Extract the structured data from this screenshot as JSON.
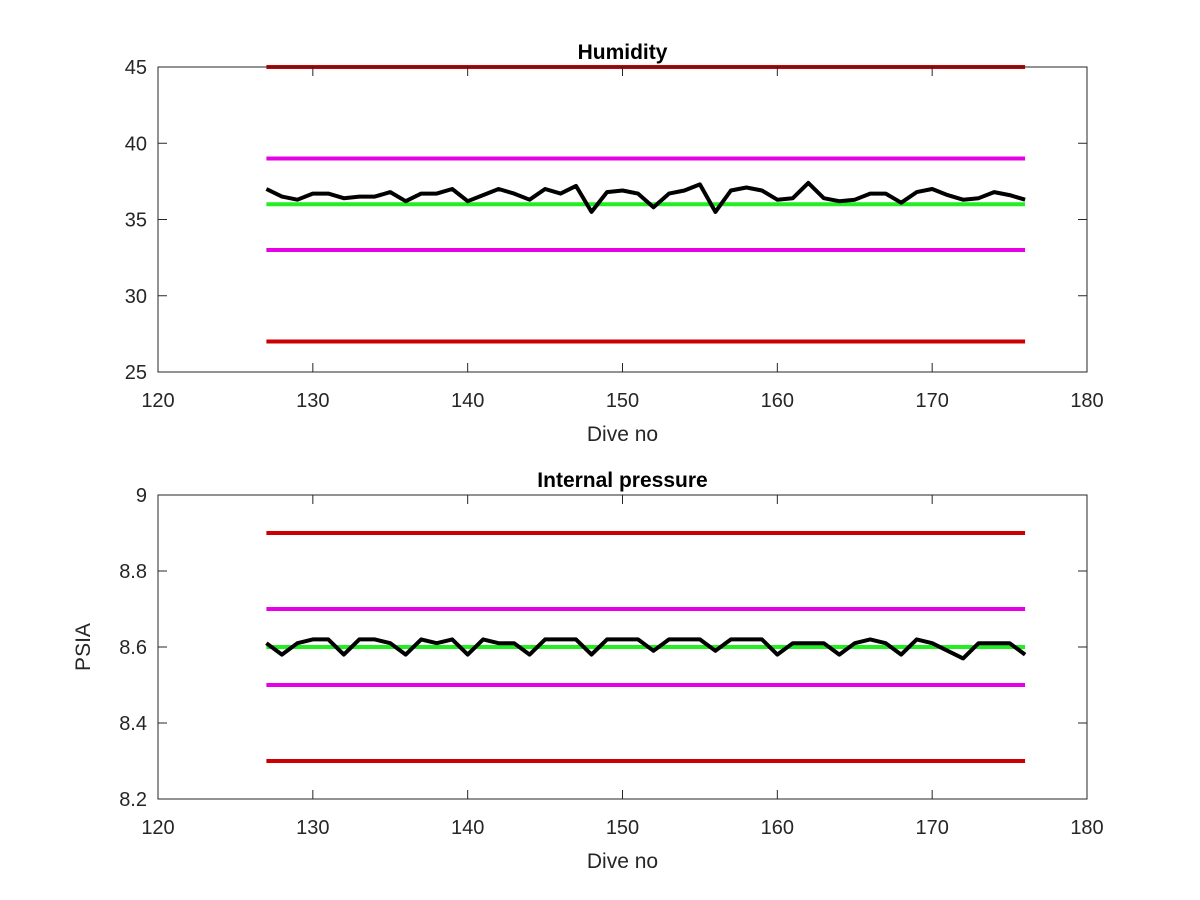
{
  "chart_data": [
    {
      "type": "line",
      "title": "Humidity",
      "xlabel": "Dive no",
      "ylabel": "",
      "xlim": [
        120,
        180
      ],
      "ylim": [
        25,
        45
      ],
      "xticks": [
        120,
        130,
        140,
        150,
        160,
        170,
        180
      ],
      "yticks": [
        25,
        30,
        35,
        40,
        45
      ],
      "grid": false,
      "series": [
        {
          "color": "#cc0000",
          "x": [
            127,
            176
          ],
          "values": [
            45,
            45
          ]
        },
        {
          "color": "#e600e6",
          "x": [
            127,
            176
          ],
          "values": [
            39,
            39
          ]
        },
        {
          "color": "#22ee22",
          "x": [
            127,
            176
          ],
          "values": [
            36,
            36
          ]
        },
        {
          "color": "#e600e6",
          "x": [
            127,
            176
          ],
          "values": [
            33,
            33
          ]
        },
        {
          "color": "#cc0000",
          "x": [
            127,
            176
          ],
          "values": [
            27,
            27
          ]
        },
        {
          "color": "#000000",
          "x": [
            127,
            128,
            129,
            130,
            131,
            132,
            133,
            134,
            135,
            136,
            137,
            138,
            139,
            140,
            141,
            142,
            143,
            144,
            145,
            146,
            147,
            148,
            149,
            150,
            151,
            152,
            153,
            154,
            155,
            156,
            157,
            158,
            159,
            160,
            161,
            162,
            163,
            164,
            165,
            166,
            167,
            168,
            169,
            170,
            171,
            172,
            173,
            174,
            175,
            176
          ],
          "values": [
            37.0,
            36.5,
            36.3,
            36.7,
            36.7,
            36.4,
            36.5,
            36.5,
            36.8,
            36.2,
            36.7,
            36.7,
            37.0,
            36.2,
            36.6,
            37.0,
            36.7,
            36.3,
            37.0,
            36.7,
            37.2,
            35.5,
            36.8,
            36.9,
            36.7,
            35.8,
            36.7,
            36.9,
            37.3,
            35.5,
            36.9,
            37.1,
            36.9,
            36.3,
            36.4,
            37.4,
            36.4,
            36.2,
            36.3,
            36.7,
            36.7,
            36.1,
            36.8,
            37.0,
            36.6,
            36.3,
            36.4,
            36.8,
            36.6,
            36.3
          ]
        }
      ]
    },
    {
      "type": "line",
      "title": "Internal pressure",
      "xlabel": "Dive no",
      "ylabel": "PSIA",
      "xlim": [
        120,
        180
      ],
      "ylim": [
        8.2,
        9
      ],
      "xticks": [
        120,
        130,
        140,
        150,
        160,
        170,
        180
      ],
      "yticks": [
        "8.2",
        "8.4",
        "8.6",
        "8.8",
        "9"
      ],
      "grid": false,
      "series": [
        {
          "color": "#cc0000",
          "x": [
            127,
            176
          ],
          "values": [
            8.9,
            8.9
          ]
        },
        {
          "color": "#e600e6",
          "x": [
            127,
            176
          ],
          "values": [
            8.7,
            8.7
          ]
        },
        {
          "color": "#22ee22",
          "x": [
            127,
            176
          ],
          "values": [
            8.6,
            8.6
          ]
        },
        {
          "color": "#e600e6",
          "x": [
            127,
            176
          ],
          "values": [
            8.5,
            8.5
          ]
        },
        {
          "color": "#cc0000",
          "x": [
            127,
            176
          ],
          "values": [
            8.3,
            8.3
          ]
        },
        {
          "color": "#000000",
          "x": [
            127,
            128,
            129,
            130,
            131,
            132,
            133,
            134,
            135,
            136,
            137,
            138,
            139,
            140,
            141,
            142,
            143,
            144,
            145,
            146,
            147,
            148,
            149,
            150,
            151,
            152,
            153,
            154,
            155,
            156,
            157,
            158,
            159,
            160,
            161,
            162,
            163,
            164,
            165,
            166,
            167,
            168,
            169,
            170,
            171,
            172,
            173,
            174,
            175,
            176
          ],
          "values": [
            8.61,
            8.58,
            8.61,
            8.62,
            8.62,
            8.58,
            8.62,
            8.62,
            8.61,
            8.58,
            8.62,
            8.61,
            8.62,
            8.58,
            8.62,
            8.61,
            8.61,
            8.58,
            8.62,
            8.62,
            8.62,
            8.58,
            8.62,
            8.62,
            8.62,
            8.59,
            8.62,
            8.62,
            8.62,
            8.59,
            8.62,
            8.62,
            8.62,
            8.58,
            8.61,
            8.61,
            8.61,
            8.58,
            8.61,
            8.62,
            8.61,
            8.58,
            8.62,
            8.61,
            8.59,
            8.57,
            8.61,
            8.61,
            8.61,
            8.58
          ]
        }
      ]
    }
  ]
}
